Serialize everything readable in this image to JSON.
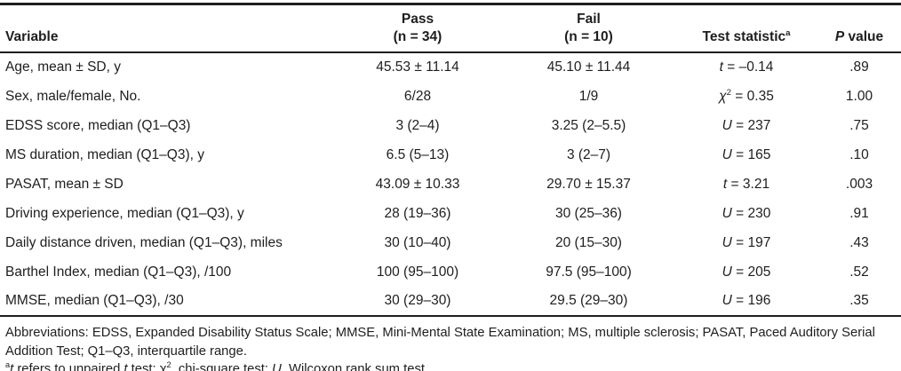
{
  "table": {
    "header": {
      "variable": "Variable",
      "pass_line1": "Pass",
      "pass_line2": "(n = 34)",
      "fail_line1": "Fail",
      "fail_line2": "(n = 10)",
      "test_statistic": {
        "label": "Test statistic",
        "sup": "a"
      },
      "p_value": {
        "italic": "P",
        "rest": " value"
      }
    },
    "rows": [
      {
        "variable": "Age, mean ± SD, y",
        "pass": "45.53 ± 11.14",
        "fail": "45.10 ± 11.44",
        "test": {
          "sym": "t",
          "sup": "",
          "val": "–0.14"
        },
        "p": ".89"
      },
      {
        "variable": "Sex, male/female, No.",
        "pass": "6/28",
        "fail": "1/9",
        "test": {
          "sym": "χ",
          "sup": "2",
          "val": "0.35"
        },
        "p": "1.00"
      },
      {
        "variable": "EDSS score, median (Q1–Q3)",
        "pass": "3 (2–4)",
        "fail": "3.25 (2–5.5)",
        "test": {
          "sym": "U",
          "sup": "",
          "val": "237"
        },
        "p": ".75"
      },
      {
        "variable": "MS duration, median (Q1–Q3), y",
        "pass": "6.5 (5–13)",
        "fail": "3 (2–7)",
        "test": {
          "sym": "U",
          "sup": "",
          "val": "165"
        },
        "p": ".10"
      },
      {
        "variable": "PASAT, mean ± SD",
        "pass": "43.09 ± 10.33",
        "fail": "29.70 ± 15.37",
        "test": {
          "sym": "t",
          "sup": "",
          "val": "3.21"
        },
        "p": ".003"
      },
      {
        "variable": "Driving experience, median (Q1–Q3), y",
        "pass": "28 (19–36)",
        "fail": "30 (25–36)",
        "test": {
          "sym": "U",
          "sup": "",
          "val": "230"
        },
        "p": ".91"
      },
      {
        "variable": "Daily distance driven, median (Q1–Q3), miles",
        "pass": "30 (10–40)",
        "fail": "20 (15–30)",
        "test": {
          "sym": "U",
          "sup": "",
          "val": "197"
        },
        "p": ".43"
      },
      {
        "variable": "Barthel Index, median (Q1–Q3), /100",
        "pass": "100 (95–100)",
        "fail": "97.5 (95–100)",
        "test": {
          "sym": "U",
          "sup": "",
          "val": "205"
        },
        "p": ".52"
      },
      {
        "variable": "MMSE, median (Q1–Q3), /30",
        "pass": "30 (29–30)",
        "fail": "29.5 (29–30)",
        "test": {
          "sym": "U",
          "sup": "",
          "val": "196"
        },
        "p": ".35"
      }
    ]
  },
  "footnotes": {
    "abbreviations": "Abbreviations: EDSS, Expanded Disability Status Scale; MMSE, Mini-Mental State Examination; MS, multiple sclerosis; PASAT, Paced Auditory Serial Addition Test; Q1–Q3, interquartile range.",
    "note_a_segments": [
      {
        "t": "a",
        "style": "sup"
      },
      {
        "t": "t",
        "style": "i"
      },
      {
        "t": " refers to unpaired ",
        "style": ""
      },
      {
        "t": "t",
        "style": "i"
      },
      {
        "t": " test; ",
        "style": ""
      },
      {
        "t": "χ",
        "style": ""
      },
      {
        "t": "2",
        "style": "sup"
      },
      {
        "t": ", chi-square test; ",
        "style": ""
      },
      {
        "t": "U",
        "style": "i"
      },
      {
        "t": ", Wilcoxon rank sum test.",
        "style": ""
      }
    ]
  }
}
